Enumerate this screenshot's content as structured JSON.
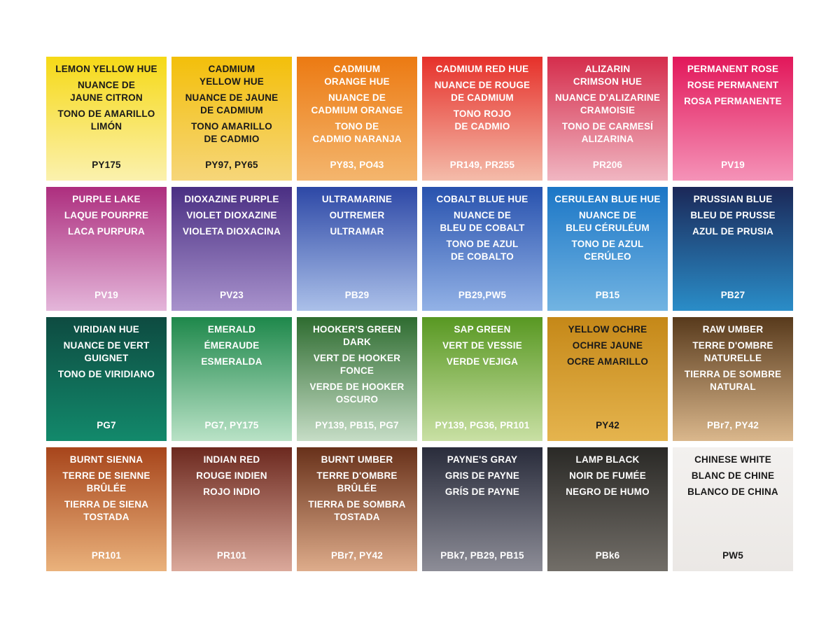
{
  "swatches": [
    {
      "names": [
        "LEMON YELLOW HUE",
        "NUANCE DE\nJAUNE CITRON",
        "TONO DE AMARILLO\nLIMÓN"
      ],
      "code": "PY175"
    },
    {
      "names": [
        "CADMIUM\nYELLOW HUE",
        "NUANCE DE JAUNE\nDE CADMIUM",
        "TONO AMARILLO\nDE CADMIO"
      ],
      "code": "PY97, PY65"
    },
    {
      "names": [
        "CADMIUM\nORANGE HUE",
        "NUANCE DE\nCADMIUM ORANGE",
        "TONO DE\nCADMIO NARANJA"
      ],
      "code": "PY83, PO43"
    },
    {
      "names": [
        "CADMIUM RED HUE",
        "NUANCE DE ROUGE\nDE CADMIUM",
        "TONO ROJO\nDE CADMIO"
      ],
      "code": "PR149, PR255"
    },
    {
      "names": [
        "ALIZARIN\nCRIMSON HUE",
        "NUANCE D'ALIZARINE\nCRAMOISIE",
        "TONO DE CARMESÍ\nALIZARINA"
      ],
      "code": "PR206"
    },
    {
      "names": [
        "PERMANENT ROSE",
        "ROSE PERMANENT",
        "ROSA PERMANENTE"
      ],
      "code": "PV19"
    },
    {
      "names": [
        "PURPLE LAKE",
        "LAQUE POURPRE",
        "LACA PURPURA"
      ],
      "code": "PV19"
    },
    {
      "names": [
        "DIOXAZINE PURPLE",
        "VIOLET DIOXAZINE",
        "VIOLETA DIOXACINA"
      ],
      "code": "PV23"
    },
    {
      "names": [
        "ULTRAMARINE",
        "OUTREMER",
        "ULTRAMAR"
      ],
      "code": "PB29"
    },
    {
      "names": [
        "COBALT BLUE HUE",
        "NUANCE DE\nBLEU DE COBALT",
        "TONO DE AZUL\nDE COBALTO"
      ],
      "code": "PB29,PW5"
    },
    {
      "names": [
        "CERULEAN BLUE HUE",
        "NUANCE DE\nBLEU CÉRULÉUM",
        "TONO DE AZUL\nCERÚLEO"
      ],
      "code": "PB15"
    },
    {
      "names": [
        "PRUSSIAN BLUE",
        "BLEU DE PRUSSE",
        "AZUL DE PRUSIA"
      ],
      "code": "PB27"
    },
    {
      "names": [
        "VIRIDIAN HUE",
        "NUANCE DE VERT\nGUIGNET",
        "TONO DE VIRIDIANO"
      ],
      "code": "PG7"
    },
    {
      "names": [
        "EMERALD",
        "ÉMERAUDE",
        "ESMERALDA"
      ],
      "code": "PG7, PY175"
    },
    {
      "names": [
        "HOOKER'S GREEN\nDARK",
        "VERT DE HOOKER\nFONCE",
        "VERDE DE HOOKER\nOSCURO"
      ],
      "code": "PY139, PB15, PG7"
    },
    {
      "names": [
        "SAP GREEN",
        "VERT DE VESSIE",
        "VERDE VEJIGA"
      ],
      "code": "PY139, PG36, PR101"
    },
    {
      "names": [
        "YELLOW OCHRE",
        "OCHRE JAUNE",
        "OCRE AMARILLO"
      ],
      "code": "PY42"
    },
    {
      "names": [
        "RAW UMBER",
        "TERRE D'OMBRE\nNATURELLE",
        "TIERRA DE SOMBRE\nNATURAL"
      ],
      "code": "PBr7, PY42"
    },
    {
      "names": [
        "BURNT SIENNA",
        "TERRE DE SIENNE\nBRÛLÉE",
        "TIERRA DE SIENA\nTOSTADA"
      ],
      "code": "PR101"
    },
    {
      "names": [
        "INDIAN RED",
        "ROUGE INDIEN",
        "ROJO INDIO"
      ],
      "code": "PR101"
    },
    {
      "names": [
        "BURNT UMBER",
        "TERRE D'OMBRE\nBRÛLÉE",
        "TIERRA DE SOMBRA\nTOSTADA"
      ],
      "code": "PBr7, PY42"
    },
    {
      "names": [
        "PAYNE'S GRAY",
        "GRIS DE PAYNE",
        "GRÍS DE PAYNE"
      ],
      "code": "PBk7, PB29, PB15"
    },
    {
      "names": [
        "LAMP BLACK",
        "NOIR DE FUMÉE",
        "NEGRO DE HUMO"
      ],
      "code": "PBk6"
    },
    {
      "names": [
        "CHINESE WHITE",
        "BLANC DE CHINE",
        "BLANCO DE CHINA"
      ],
      "code": "PW5"
    }
  ]
}
